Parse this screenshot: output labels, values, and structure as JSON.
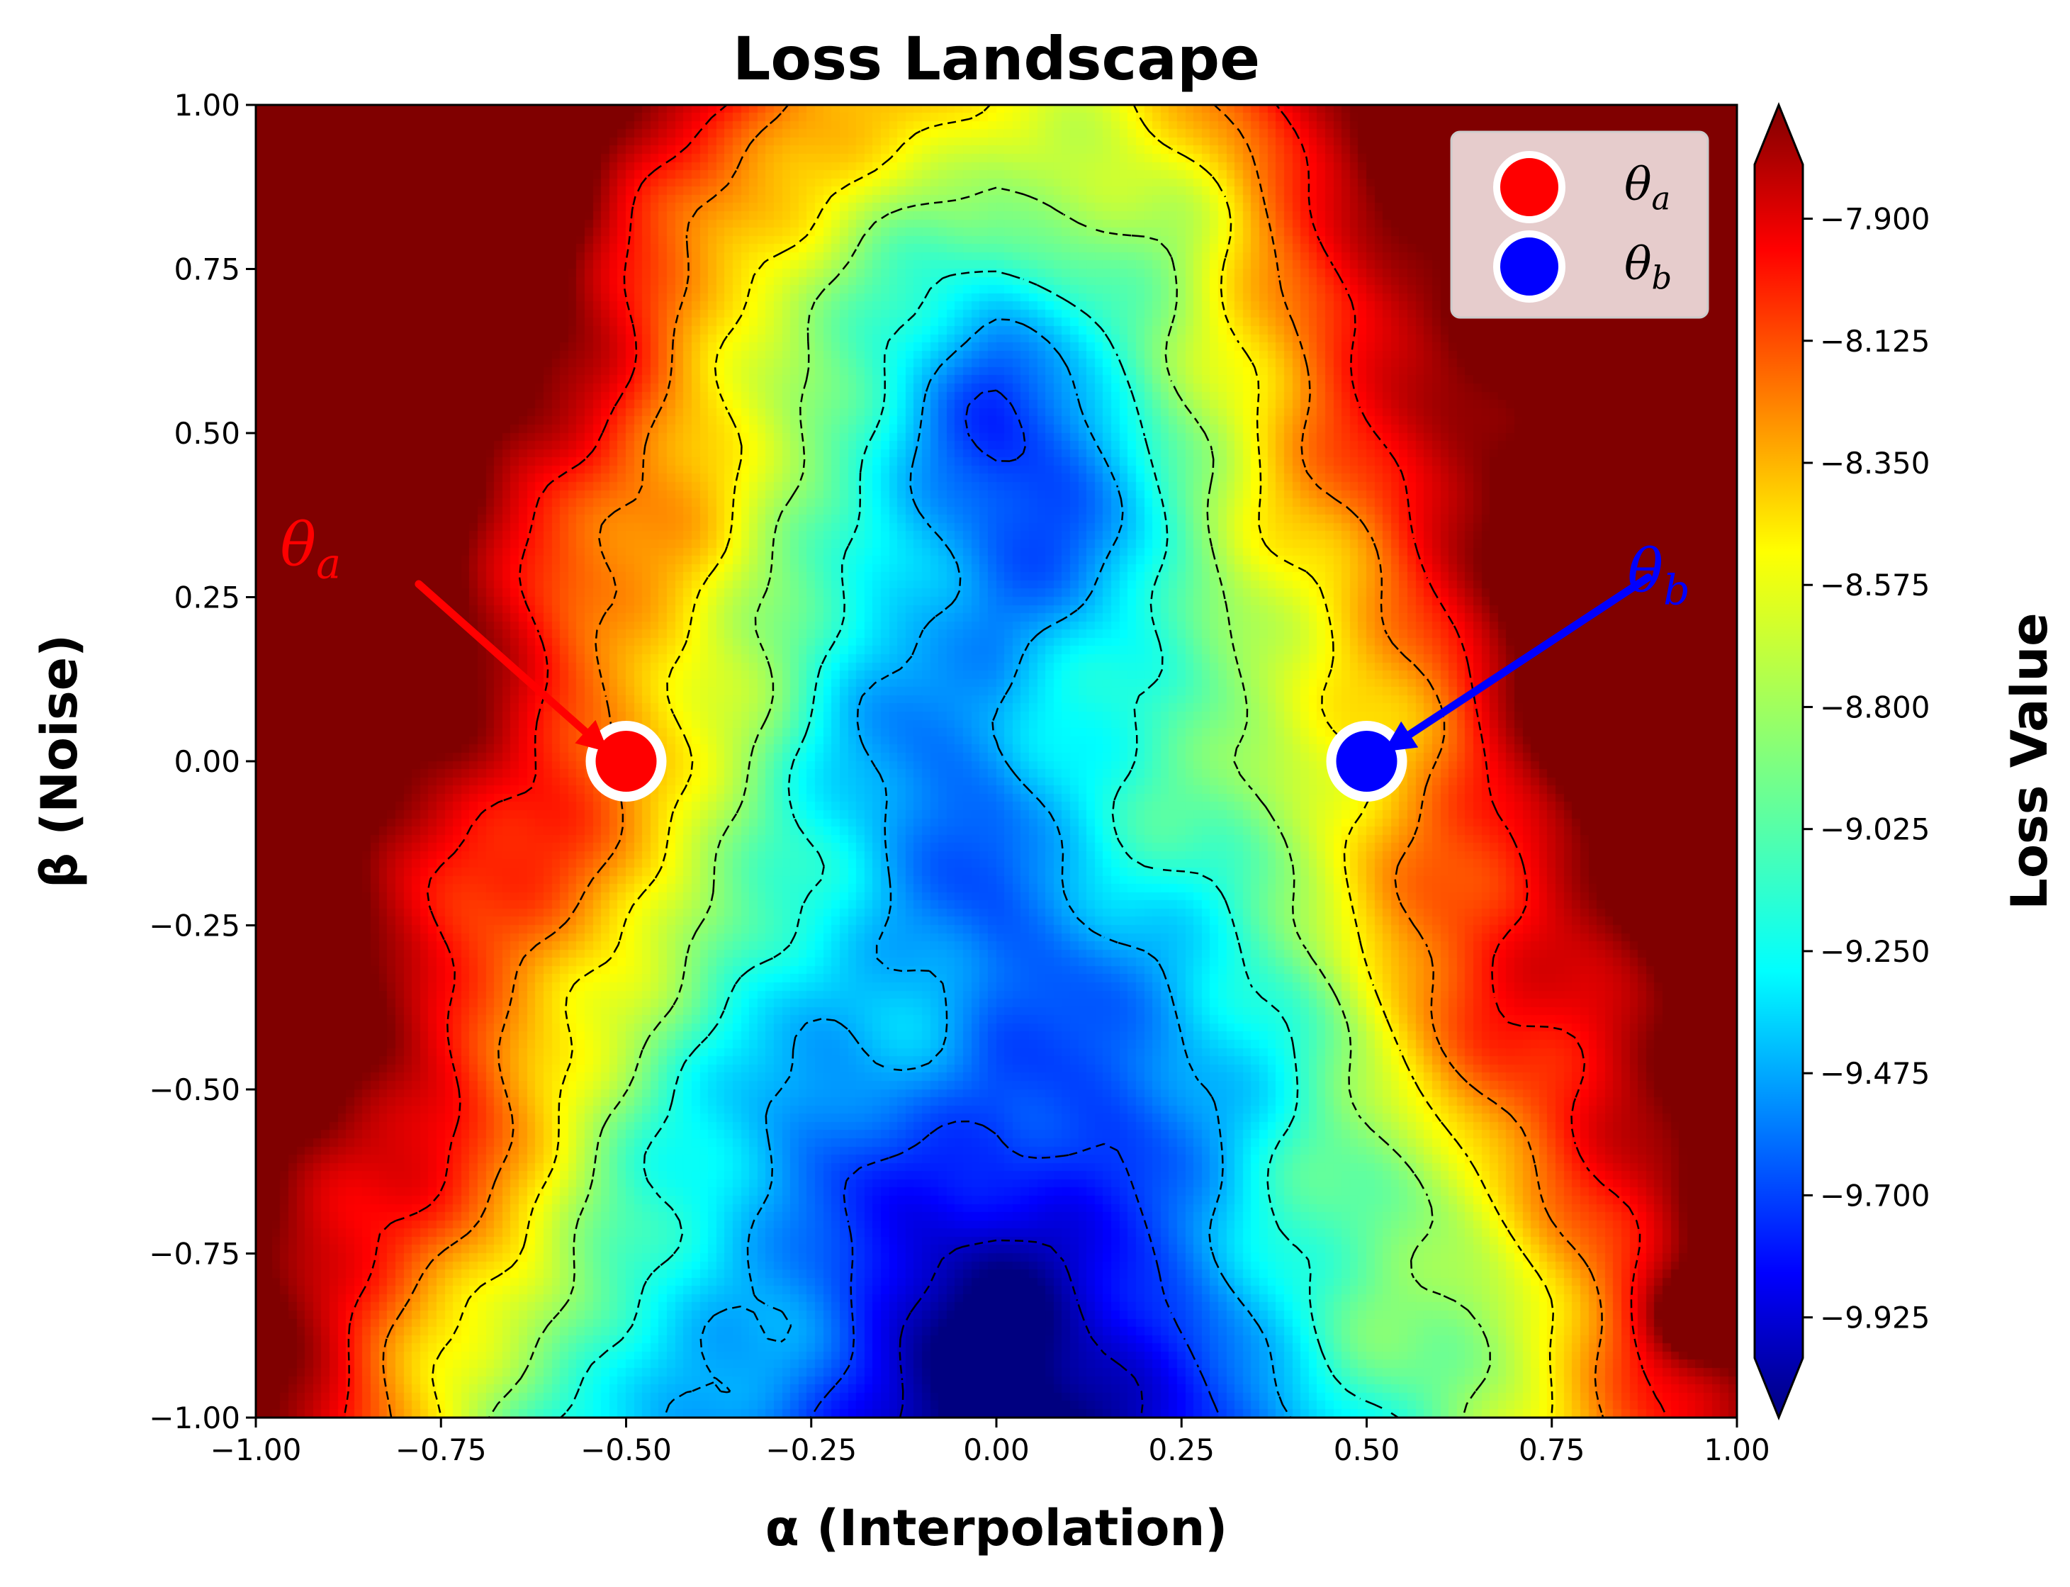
{
  "chart_data": {
    "type": "heatmap",
    "title": "Loss Landscape",
    "xlabel": "α (Interpolation)",
    "ylabel": "β (Noise)",
    "colorbar_label": "Loss Value",
    "colormap": "jet",
    "xlim": [
      -1.0,
      1.0
    ],
    "ylim": [
      -1.0,
      1.0
    ],
    "zlim": [
      -10.0,
      -7.8
    ],
    "x_ticks": [
      "−1.00",
      "−0.75",
      "−0.50",
      "−0.25",
      "0.00",
      "0.25",
      "0.50",
      "0.75",
      "1.00"
    ],
    "x_tick_values": [
      -1.0,
      -0.75,
      -0.5,
      -0.25,
      0.0,
      0.25,
      0.5,
      0.75,
      1.0
    ],
    "y_ticks": [
      "1.00",
      "0.75",
      "0.50",
      "0.25",
      "0.00",
      "−0.25",
      "−0.50",
      "−0.75",
      "−1.00"
    ],
    "y_tick_values": [
      1.0,
      0.75,
      0.5,
      0.25,
      0.0,
      -0.25,
      -0.5,
      -0.75,
      -1.0
    ],
    "colorbar_ticks": [
      "−7.900",
      "−8.125",
      "−8.350",
      "−8.575",
      "−8.800",
      "−9.025",
      "−9.250",
      "−9.475",
      "−9.700",
      "−9.925"
    ],
    "colorbar_tick_values": [
      -7.9,
      -8.125,
      -8.35,
      -8.575,
      -8.8,
      -9.025,
      -9.25,
      -9.475,
      -9.7,
      -9.925
    ],
    "contour_style": "dashed",
    "legend_position": "top-right",
    "points": [
      {
        "name": "θa",
        "sub": "a",
        "x": -0.5,
        "y": 0.0,
        "color": "#ff0000"
      },
      {
        "name": "θb",
        "sub": "b",
        "x": 0.5,
        "y": 0.0,
        "color": "#0000ff"
      }
    ],
    "annotations": [
      {
        "label": "θa",
        "sub": "a",
        "color": "#ff0000",
        "text_x": -0.9,
        "text_y": 0.32,
        "arrow_from": [
          -0.78,
          0.27
        ],
        "arrow_to": [
          -0.53,
          0.02
        ]
      },
      {
        "label": "θb",
        "sub": "b",
        "color": "#0000ff",
        "text_x": 0.9,
        "text_y": 0.28,
        "arrow_from": [
          0.88,
          0.28
        ],
        "arrow_to": [
          0.53,
          0.02
        ]
      }
    ]
  }
}
